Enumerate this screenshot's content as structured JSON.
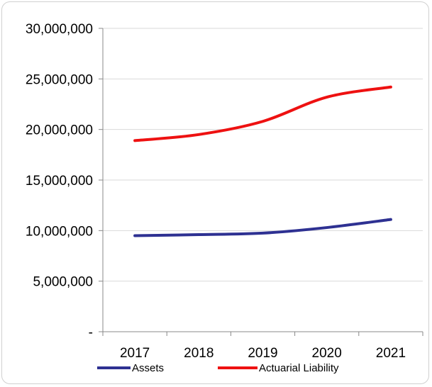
{
  "chart_data": {
    "type": "line",
    "title": "",
    "xlabel": "",
    "ylabel": "",
    "x": [
      "2017",
      "2018",
      "2019",
      "2020",
      "2021"
    ],
    "ylim": [
      0,
      30000000
    ],
    "yticks": [
      0,
      5000000,
      10000000,
      15000000,
      20000000,
      25000000,
      30000000
    ],
    "ytick_labels": [
      "-",
      "5,000,000",
      "10,000,000",
      "15,000,000",
      "20,000,000",
      "25,000,000",
      "30,000,000"
    ],
    "grid": "horizontal",
    "legend_position": "bottom",
    "series": [
      {
        "name": "Assets",
        "color": "#2e3192",
        "values": [
          9500000,
          9600000,
          9750000,
          10300000,
          11100000
        ]
      },
      {
        "name": "Actuarial Liability",
        "color": "#ee1111",
        "values": [
          18900000,
          19500000,
          20800000,
          23200000,
          24200000
        ]
      }
    ]
  }
}
